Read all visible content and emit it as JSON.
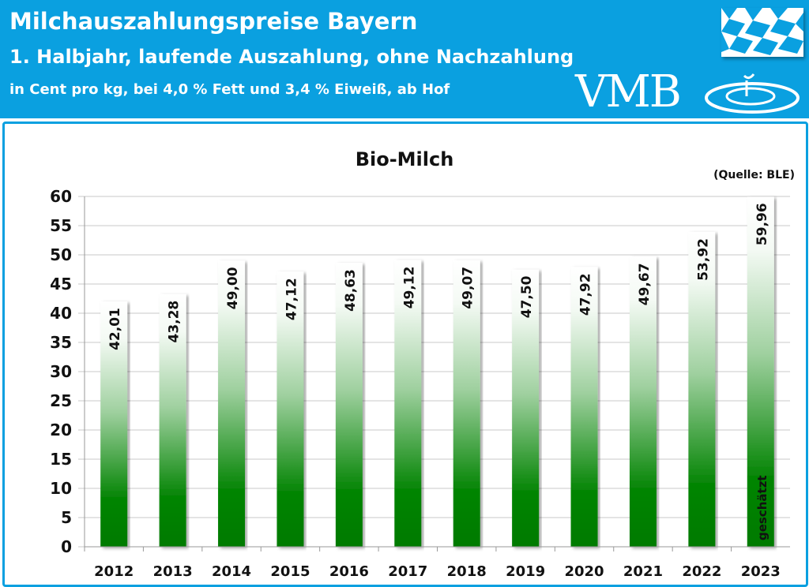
{
  "header": {
    "title": "Milchauszahlungspreise Bayern",
    "subtitle": "1. Halbjahr, laufende Auszahlung, ohne Nachzahlung",
    "unit_line": "in Cent pro kg, bei 4,0 % Fett und 3,4 % Eiweiß, ab Hof",
    "logo_text": "VMB",
    "flag_icon": "bavarian-flag-icon"
  },
  "colors": {
    "header": "#0aa0e0",
    "bar_dark": "#007a00",
    "bar_light": "#ffffff"
  },
  "chart_data": {
    "type": "bar",
    "title": "Bio-Milch",
    "source": "(Quelle: BLE)",
    "categories": [
      "2012",
      "2013",
      "2014",
      "2015",
      "2016",
      "2017",
      "2018",
      "2019",
      "2020",
      "2021",
      "2022",
      "2023"
    ],
    "values": [
      42.01,
      43.28,
      49.0,
      47.12,
      48.63,
      49.12,
      49.07,
      47.5,
      47.92,
      49.67,
      53.92,
      59.96
    ],
    "labels": [
      "42,01",
      "43,28",
      "49,00",
      "47,12",
      "48,63",
      "49,12",
      "49,07",
      "47,50",
      "47,92",
      "49,67",
      "53,92",
      "59,96"
    ],
    "annotation": {
      "category": "2023",
      "text": "geschätzt"
    },
    "ylim": [
      0,
      60
    ],
    "yticks": [
      0,
      5,
      10,
      15,
      20,
      25,
      30,
      35,
      40,
      45,
      50,
      55,
      60
    ],
    "grid": true,
    "xlabel": "",
    "ylabel": ""
  }
}
